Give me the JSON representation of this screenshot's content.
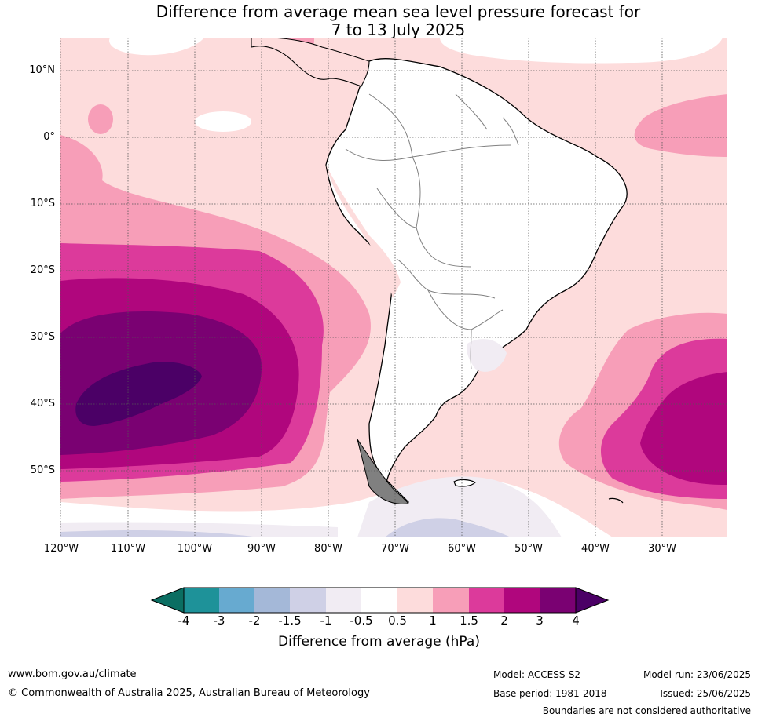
{
  "title": {
    "line1": "Difference from average mean sea level pressure forecast for",
    "line2": "7 to 13 July 2025"
  },
  "map": {
    "lat_labels": [
      "10°N",
      "0°",
      "10°S",
      "20°S",
      "30°S",
      "40°S",
      "50°S"
    ],
    "lon_labels": [
      "120°W",
      "110°W",
      "100°W",
      "90°W",
      "80°W",
      "70°W",
      "60°W",
      "50°W",
      "40°W",
      "30°W"
    ]
  },
  "colorbar": {
    "title": "Difference from average (hPa)",
    "tick_labels": [
      "-4",
      "-3",
      "-2",
      "-1.5",
      "-1",
      "-0.5",
      "0.5",
      "1",
      "1.5",
      "2",
      "3",
      "4"
    ],
    "colors": [
      "#0b6e62",
      "#1e9299",
      "#67aad0",
      "#a4b8d8",
      "#cfd0e6",
      "#f1ecf3",
      "#ffffff",
      "#fddcdc",
      "#f79eb8",
      "#dc3a9b",
      "#b0067d",
      "#7a0172",
      "#4b0066"
    ]
  },
  "footer": {
    "website": "www.bom.gov.au/climate",
    "copyright": "© Commonwealth of Australia 2025, Australian Bureau of Meteorology",
    "model": "Model: ACCESS-S2",
    "base_period": "Base period: 1981-2018",
    "model_run": "Model run: 23/06/2025",
    "issued": "Issued: 25/06/2025",
    "disclaimer": "Boundaries are not considered authoritative"
  }
}
